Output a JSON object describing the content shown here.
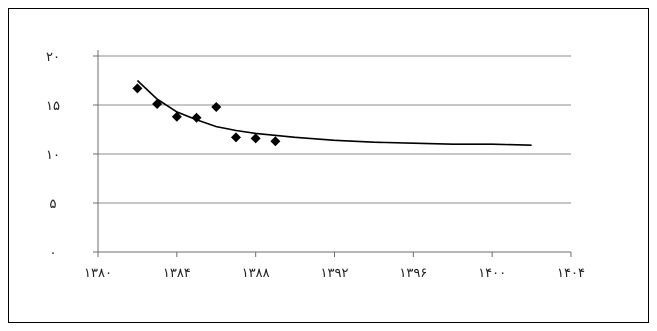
{
  "chart_data": {
    "type": "scatter",
    "title": "",
    "xlabel": "",
    "ylabel": "",
    "xlim": [
      1380,
      1404
    ],
    "ylim": [
      0,
      20
    ],
    "grid": "horizontal",
    "legend": "none",
    "x_ticks": [
      1380,
      1384,
      1388,
      1392,
      1396,
      1400,
      1404
    ],
    "x_tick_labels": [
      "۱۳۸۰",
      "۱۳۸۴",
      "۱۳۸۸",
      "۱۳۹۲",
      "۱۳۹۶",
      "۱۴۰۰",
      "۱۴۰۴"
    ],
    "y_ticks": [
      0,
      5,
      10,
      15,
      20
    ],
    "y_tick_labels": [
      "۰",
      "۵",
      "۱۰",
      "۱۵",
      "۲۰"
    ],
    "series": [
      {
        "points": [
          {
            "x": 1382,
            "y": 16.7
          },
          {
            "x": 1383,
            "y": 15.1
          },
          {
            "x": 1384,
            "y": 13.8
          },
          {
            "x": 1385,
            "y": 13.7
          },
          {
            "x": 1386,
            "y": 14.8
          },
          {
            "x": 1387,
            "y": 11.7
          },
          {
            "x": 1388,
            "y": 11.6
          },
          {
            "x": 1389,
            "y": 11.3
          }
        ]
      }
    ],
    "trendline": {
      "type": "power",
      "x": [
        1382,
        1383,
        1384,
        1385,
        1386,
        1387,
        1388,
        1390,
        1392,
        1394,
        1396,
        1398,
        1400,
        1402
      ],
      "y": [
        17.5,
        15.6,
        14.3,
        13.5,
        12.8,
        12.4,
        12.1,
        11.7,
        11.4,
        11.2,
        11.1,
        11.0,
        11.0,
        10.9
      ]
    },
    "colors": {
      "markers": "#000000",
      "trendline": "#000000",
      "grid": "#8c8c8c",
      "axis": "#6e6e6e"
    }
  }
}
